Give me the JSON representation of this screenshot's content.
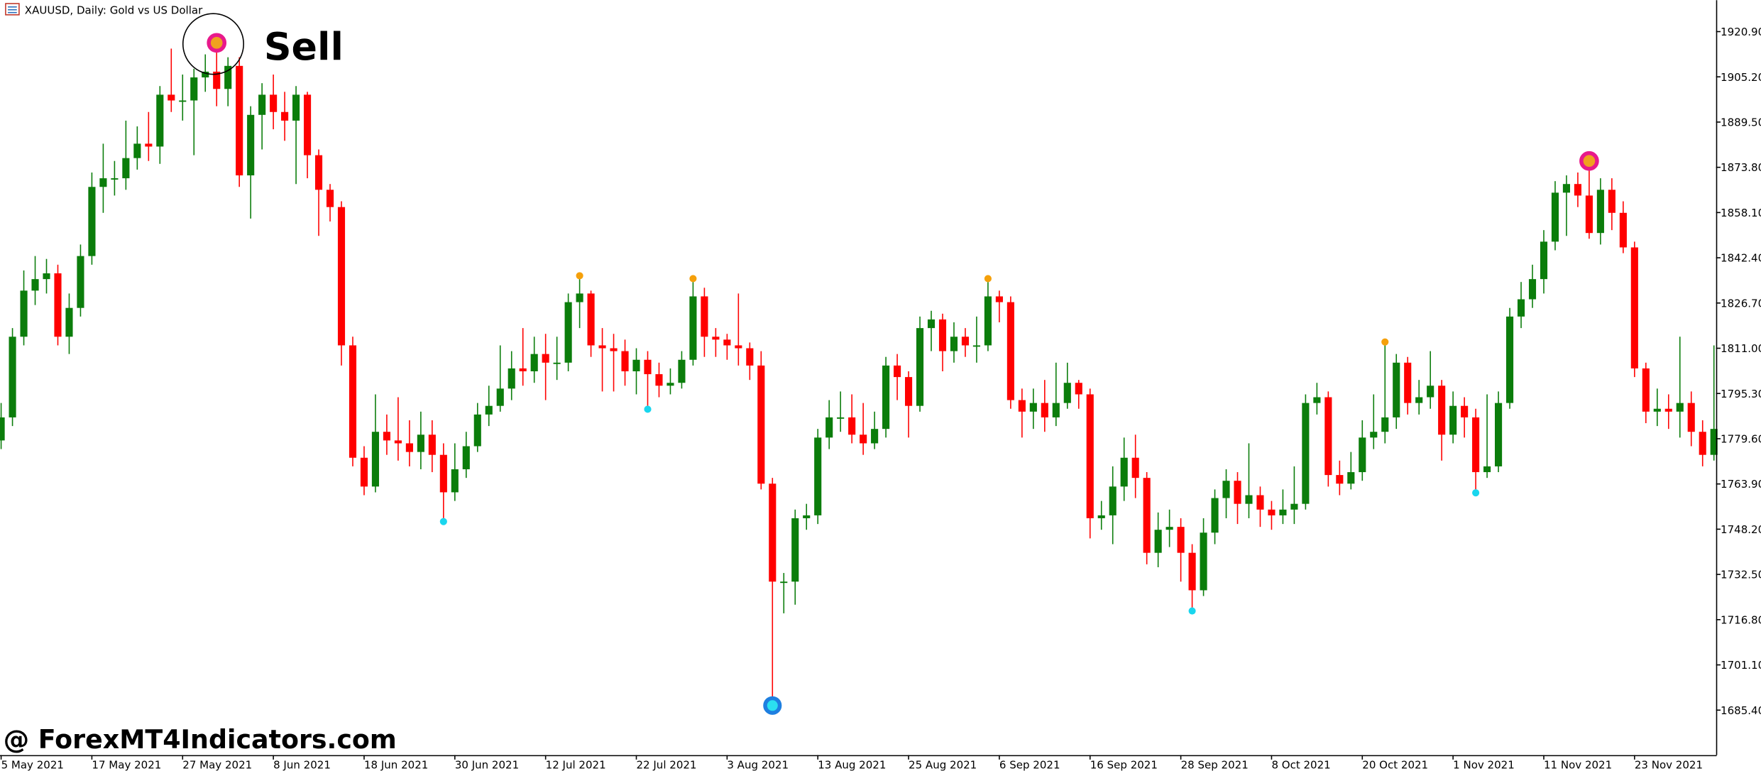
{
  "chart_data": {
    "type": "candlestick",
    "title": "XAUUSD, Daily:  Gold vs US Dollar",
    "annotation": "Sell",
    "watermark": "@ ForexMT4Indicators.com",
    "up_color": "#0b7d0b",
    "down_color": "#ff0000",
    "ylim": [
      1669.8,
      1931.8
    ],
    "yticks": [
      {
        "value": 1920.9,
        "label": "1920.90"
      },
      {
        "value": 1905.2,
        "label": "1905.20"
      },
      {
        "value": 1889.5,
        "label": "1889.50"
      },
      {
        "value": 1873.8,
        "label": "1873.80"
      },
      {
        "value": 1858.1,
        "label": "1858.10"
      },
      {
        "value": 1842.4,
        "label": "1842.40"
      },
      {
        "value": 1826.7,
        "label": "1826.70"
      },
      {
        "value": 1811.0,
        "label": "1811.00"
      },
      {
        "value": 1795.3,
        "label": "1795.30"
      },
      {
        "value": 1779.6,
        "label": "1779.60"
      },
      {
        "value": 1763.9,
        "label": "1763.90"
      },
      {
        "value": 1748.2,
        "label": "1748.20"
      },
      {
        "value": 1732.5,
        "label": "1732.50"
      },
      {
        "value": 1716.8,
        "label": "1716.80"
      },
      {
        "value": 1701.1,
        "label": "1701.10"
      },
      {
        "value": 1685.4,
        "label": "1685.40"
      }
    ],
    "xticks": [
      {
        "value": 0,
        "label": "5 May 2021"
      },
      {
        "value": 8,
        "label": "17 May 2021"
      },
      {
        "value": 16,
        "label": "27 May 2021"
      },
      {
        "value": 24,
        "label": "8 Jun 2021"
      },
      {
        "value": 32,
        "label": "18 Jun 2021"
      },
      {
        "value": 40,
        "label": "30 Jun 2021"
      },
      {
        "value": 48,
        "label": "12 Jul 2021"
      },
      {
        "value": 56,
        "label": "22 Jul 2021"
      },
      {
        "value": 64,
        "label": "3 Aug 2021"
      },
      {
        "value": 72,
        "label": "13 Aug 2021"
      },
      {
        "value": 80,
        "label": "25 Aug 2021"
      },
      {
        "value": 88,
        "label": "6 Sep 2021"
      },
      {
        "value": 96,
        "label": "16 Sep 2021"
      },
      {
        "value": 104,
        "label": "28 Sep 2021"
      },
      {
        "value": 112,
        "label": "8 Oct 2021"
      },
      {
        "value": 120,
        "label": "20 Oct 2021"
      },
      {
        "value": 128,
        "label": "1 Nov 2021"
      },
      {
        "value": 136,
        "label": "11 Nov 2021"
      },
      {
        "value": 144,
        "label": "23 Nov 2021"
      }
    ],
    "open": [
      1779,
      1787,
      1815,
      1831,
      1835,
      1837,
      1815,
      1825,
      1843,
      1867,
      1870,
      1870,
      1877,
      1882,
      1881,
      1899,
      1897,
      1897,
      1905,
      1907,
      1901,
      1909,
      1871,
      1892,
      1899,
      1893,
      1890,
      1899,
      1878,
      1866,
      1860,
      1812,
      1773,
      1763,
      1782,
      1779,
      1778,
      1775,
      1781,
      1774,
      1761,
      1769,
      1777,
      1788,
      1791,
      1797,
      1804,
      1803,
      1809,
      1806,
      1806,
      1827,
      1830,
      1812,
      1811,
      1810,
      1803,
      1807,
      1802,
      1798,
      1799,
      1807,
      1829,
      1815,
      1814,
      1812,
      1811,
      1805,
      1764,
      1730,
      1730,
      1752,
      1753,
      1780,
      1787,
      1787,
      1781,
      1778,
      1783,
      1805,
      1801,
      1791,
      1818,
      1821,
      1810,
      1815,
      1812,
      1812,
      1829,
      1827,
      1793,
      1789,
      1792,
      1787,
      1792,
      1799,
      1795,
      1752,
      1753,
      1763,
      1773,
      1766,
      1740,
      1748,
      1749,
      1740,
      1727,
      1747,
      1759,
      1765,
      1757,
      1760,
      1755,
      1753,
      1755,
      1757,
      1792,
      1794,
      1767,
      1764,
      1768,
      1780,
      1782,
      1787,
      1806,
      1792,
      1794,
      1798,
      1781,
      1791,
      1787,
      1768,
      1770,
      1792,
      1822,
      1828,
      1835,
      1848,
      1865,
      1868,
      1864,
      1851,
      1866,
      1858,
      1846,
      1804,
      1789,
      1790,
      1789,
      1792,
      1782,
      1774,
      1783
    ],
    "high": [
      1792,
      1818,
      1838,
      1843,
      1842,
      1840,
      1830,
      1847,
      1872,
      1882,
      1876,
      1890,
      1888,
      1893,
      1902,
      1915,
      1906,
      1908,
      1913,
      1917,
      1912,
      1912,
      1895,
      1903,
      1906,
      1900,
      1902,
      1900,
      1880,
      1868,
      1862,
      1815,
      1777,
      1795,
      1788,
      1794,
      1786,
      1789,
      1786,
      1778,
      1778,
      1782,
      1792,
      1798,
      1812,
      1810,
      1818,
      1815,
      1816,
      1815,
      1830,
      1835,
      1831,
      1818,
      1816,
      1814,
      1811,
      1810,
      1806,
      1804,
      1810,
      1834,
      1832,
      1818,
      1816,
      1830,
      1813,
      1810,
      1766,
      1733,
      1755,
      1757,
      1783,
      1793,
      1796,
      1795,
      1792,
      1789,
      1808,
      1809,
      1803,
      1822,
      1824,
      1823,
      1820,
      1818,
      1822,
      1834,
      1831,
      1829,
      1797,
      1797,
      1800,
      1806,
      1806,
      1800,
      1797,
      1758,
      1770,
      1780,
      1781,
      1768,
      1754,
      1755,
      1752,
      1743,
      1752,
      1762,
      1769,
      1768,
      1778,
      1763,
      1758,
      1762,
      1770,
      1795,
      1799,
      1796,
      1772,
      1775,
      1786,
      1795,
      1812,
      1809,
      1808,
      1800,
      1810,
      1800,
      1796,
      1794,
      1790,
      1795,
      1796,
      1825,
      1834,
      1840,
      1852,
      1869,
      1871,
      1872,
      1876,
      1870,
      1870,
      1862,
      1848,
      1806,
      1797,
      1795,
      1815,
      1796,
      1786,
      1812,
      1785
    ],
    "low": [
      1776,
      1784,
      1812,
      1826,
      1830,
      1812,
      1809,
      1822,
      1840,
      1858,
      1864,
      1866,
      1873,
      1876,
      1875,
      1893,
      1890,
      1878,
      1900,
      1895,
      1895,
      1867,
      1856,
      1880,
      1887,
      1883,
      1868,
      1870,
      1850,
      1855,
      1805,
      1770,
      1760,
      1761,
      1774,
      1772,
      1770,
      1769,
      1768,
      1752,
      1758,
      1766,
      1775,
      1784,
      1789,
      1793,
      1798,
      1799,
      1793,
      1800,
      1803,
      1818,
      1808,
      1796,
      1796,
      1798,
      1795,
      1791,
      1794,
      1795,
      1797,
      1805,
      1808,
      1808,
      1807,
      1805,
      1800,
      1762,
      1687,
      1719,
      1722,
      1748,
      1750,
      1776,
      1782,
      1778,
      1774,
      1776,
      1780,
      1793,
      1780,
      1789,
      1810,
      1803,
      1806,
      1808,
      1806,
      1810,
      1820,
      1790,
      1780,
      1783,
      1782,
      1784,
      1790,
      1790,
      1745,
      1748,
      1743,
      1758,
      1759,
      1736,
      1735,
      1742,
      1730,
      1721,
      1725,
      1743,
      1752,
      1750,
      1752,
      1749,
      1748,
      1750,
      1750,
      1755,
      1788,
      1763,
      1760,
      1762,
      1765,
      1776,
      1778,
      1783,
      1788,
      1788,
      1790,
      1772,
      1778,
      1780,
      1762,
      1766,
      1768,
      1790,
      1818,
      1825,
      1830,
      1845,
      1850,
      1860,
      1849,
      1847,
      1852,
      1844,
      1801,
      1785,
      1784,
      1783,
      1780,
      1777,
      1770,
      1772,
      1765
    ],
    "close": [
      1787,
      1815,
      1831,
      1835,
      1837,
      1815,
      1825,
      1843,
      1867,
      1870,
      1870,
      1877,
      1882,
      1881,
      1899,
      1897,
      1897,
      1905,
      1907,
      1901,
      1909,
      1871,
      1892,
      1899,
      1893,
      1890,
      1899,
      1878,
      1866,
      1860,
      1812,
      1773,
      1763,
      1782,
      1779,
      1778,
      1775,
      1781,
      1774,
      1761,
      1769,
      1777,
      1788,
      1791,
      1797,
      1804,
      1803,
      1809,
      1806,
      1806,
      1827,
      1830,
      1812,
      1811,
      1810,
      1803,
      1807,
      1802,
      1798,
      1799,
      1807,
      1829,
      1815,
      1814,
      1812,
      1811,
      1805,
      1764,
      1730,
      1730,
      1752,
      1753,
      1780,
      1787,
      1787,
      1781,
      1778,
      1783,
      1805,
      1801,
      1791,
      1818,
      1821,
      1810,
      1815,
      1812,
      1812,
      1829,
      1827,
      1793,
      1789,
      1792,
      1787,
      1792,
      1799,
      1795,
      1752,
      1753,
      1763,
      1773,
      1766,
      1740,
      1748,
      1749,
      1740,
      1727,
      1747,
      1759,
      1765,
      1757,
      1760,
      1755,
      1753,
      1755,
      1757,
      1792,
      1794,
      1767,
      1764,
      1768,
      1780,
      1782,
      1787,
      1806,
      1792,
      1794,
      1798,
      1781,
      1791,
      1787,
      1768,
      1770,
      1792,
      1822,
      1828,
      1835,
      1848,
      1865,
      1868,
      1864,
      1851,
      1866,
      1858,
      1846,
      1804,
      1789,
      1790,
      1789,
      1792,
      1782,
      1774,
      1783,
      1768
    ],
    "markers": {
      "sell_large": [
        19,
        140
      ],
      "sell_small": [
        51,
        61,
        87,
        122
      ],
      "buy_small": [
        39,
        57,
        105,
        130
      ],
      "buy_large": [
        68
      ]
    }
  }
}
